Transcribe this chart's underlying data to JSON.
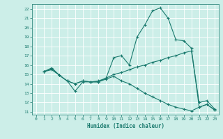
{
  "title": "",
  "xlabel": "Humidex (Indice chaleur)",
  "background_color": "#cceee8",
  "grid_color": "#ffffff",
  "line_color": "#1a7a6e",
  "xlim": [
    -0.5,
    23.5
  ],
  "ylim": [
    10.7,
    22.5
  ],
  "yticks": [
    11,
    12,
    13,
    14,
    15,
    16,
    17,
    18,
    19,
    20,
    21,
    22
  ],
  "xticks": [
    0,
    1,
    2,
    3,
    4,
    5,
    6,
    7,
    8,
    9,
    10,
    11,
    12,
    13,
    14,
    15,
    16,
    17,
    18,
    19,
    20,
    21,
    22,
    23
  ],
  "line1_x": [
    1,
    2,
    3,
    4,
    5,
    6,
    7,
    8,
    9,
    10,
    11,
    12,
    13,
    14,
    15,
    16,
    17,
    18,
    19,
    20,
    21,
    22,
    23
  ],
  "line1_y": [
    15.3,
    15.7,
    14.9,
    14.3,
    13.2,
    14.2,
    14.2,
    14.2,
    14.6,
    16.8,
    17.0,
    16.0,
    19.0,
    20.3,
    21.8,
    22.1,
    21.0,
    18.7,
    18.6,
    17.8,
    11.5,
    11.8,
    11.2
  ],
  "line2_x": [
    1,
    2,
    3,
    4,
    5,
    6,
    7,
    8,
    9,
    10,
    11,
    12,
    13,
    14,
    15,
    16,
    17,
    18,
    19,
    20,
    21,
    22,
    23
  ],
  "line2_y": [
    15.3,
    15.6,
    14.9,
    14.3,
    14.0,
    14.3,
    14.2,
    14.3,
    14.6,
    15.0,
    15.2,
    15.5,
    15.8,
    16.0,
    16.3,
    16.5,
    16.8,
    17.0,
    17.3,
    17.5,
    12.0,
    12.2,
    11.3
  ],
  "line3_x": [
    1,
    2,
    3,
    4,
    5,
    6,
    7,
    8,
    9,
    10,
    11,
    12,
    13,
    14,
    15,
    16,
    17,
    18,
    19,
    20,
    21,
    22,
    23
  ],
  "line3_y": [
    15.3,
    15.5,
    14.9,
    14.3,
    14.0,
    14.3,
    14.2,
    14.2,
    14.5,
    14.8,
    14.3,
    14.0,
    13.5,
    13.0,
    12.6,
    12.2,
    11.8,
    11.5,
    11.3,
    11.1,
    11.5,
    11.8,
    11.2
  ]
}
